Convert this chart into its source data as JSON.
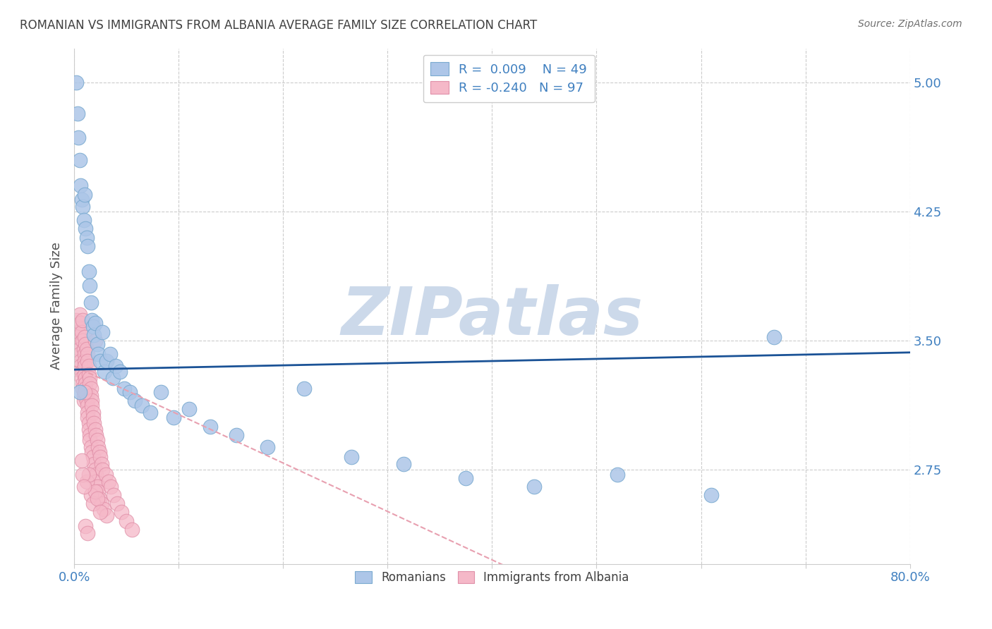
{
  "title": "ROMANIAN VS IMMIGRANTS FROM ALBANIA AVERAGE FAMILY SIZE CORRELATION CHART",
  "source": "Source: ZipAtlas.com",
  "ylabel": "Average Family Size",
  "xlim": [
    0.0,
    0.8
  ],
  "ylim": [
    2.2,
    5.2
  ],
  "yticks": [
    2.75,
    3.5,
    4.25,
    5.0
  ],
  "xticks": [
    0.0,
    0.1,
    0.2,
    0.3,
    0.4,
    0.5,
    0.6,
    0.7,
    0.8
  ],
  "xtick_labels": [
    "0.0%",
    "",
    "",
    "",
    "",
    "",
    "",
    "",
    "80.0%"
  ],
  "legend1_r": "R =  0.009",
  "legend1_n": "N = 49",
  "legend2_r": "R = -0.240",
  "legend2_n": "N = 97",
  "color_blue": "#adc6e8",
  "color_pink": "#f5b8c8",
  "trendline_blue_color": "#1a5296",
  "trendline_pink_color": "#e8a0b0",
  "watermark": "ZIPatlas",
  "watermark_color": "#ccd9ea",
  "title_color": "#404040",
  "axis_color": "#4080c0",
  "blue_x": [
    0.002,
    0.003,
    0.004,
    0.005,
    0.006,
    0.007,
    0.008,
    0.009,
    0.01,
    0.011,
    0.012,
    0.013,
    0.014,
    0.015,
    0.016,
    0.017,
    0.018,
    0.019,
    0.02,
    0.022,
    0.023,
    0.025,
    0.027,
    0.029,
    0.031,
    0.034,
    0.037,
    0.04,
    0.044,
    0.048,
    0.053,
    0.058,
    0.065,
    0.073,
    0.083,
    0.095,
    0.11,
    0.13,
    0.155,
    0.185,
    0.22,
    0.265,
    0.315,
    0.375,
    0.44,
    0.52,
    0.61,
    0.005,
    0.67
  ],
  "blue_y": [
    5.0,
    4.82,
    4.68,
    4.55,
    4.4,
    4.32,
    4.28,
    4.2,
    4.35,
    4.15,
    4.1,
    4.05,
    3.9,
    3.82,
    3.72,
    3.62,
    3.58,
    3.53,
    3.6,
    3.48,
    3.42,
    3.38,
    3.55,
    3.32,
    3.38,
    3.42,
    3.28,
    3.35,
    3.32,
    3.22,
    3.2,
    3.15,
    3.12,
    3.08,
    3.2,
    3.05,
    3.1,
    3.0,
    2.95,
    2.88,
    3.22,
    2.82,
    2.78,
    2.7,
    2.65,
    2.72,
    2.6,
    3.2,
    3.52
  ],
  "pink_x": [
    0.002,
    0.003,
    0.003,
    0.004,
    0.004,
    0.005,
    0.005,
    0.005,
    0.006,
    0.006,
    0.006,
    0.007,
    0.007,
    0.007,
    0.008,
    0.008,
    0.008,
    0.008,
    0.009,
    0.009,
    0.009,
    0.01,
    0.01,
    0.01,
    0.01,
    0.01,
    0.011,
    0.011,
    0.011,
    0.011,
    0.012,
    0.012,
    0.012,
    0.012,
    0.013,
    0.013,
    0.013,
    0.013,
    0.013,
    0.014,
    0.014,
    0.014,
    0.014,
    0.015,
    0.015,
    0.015,
    0.015,
    0.016,
    0.016,
    0.016,
    0.017,
    0.017,
    0.017,
    0.018,
    0.018,
    0.018,
    0.019,
    0.019,
    0.02,
    0.02,
    0.02,
    0.021,
    0.021,
    0.021,
    0.022,
    0.022,
    0.023,
    0.023,
    0.024,
    0.024,
    0.025,
    0.026,
    0.026,
    0.027,
    0.028,
    0.03,
    0.031,
    0.033,
    0.035,
    0.038,
    0.041,
    0.045,
    0.05,
    0.055,
    0.01,
    0.012,
    0.014,
    0.016,
    0.018,
    0.02,
    0.022,
    0.025,
    0.008,
    0.009,
    0.007,
    0.011,
    0.013
  ],
  "pink_y": [
    3.62,
    3.58,
    3.52,
    3.55,
    3.48,
    3.65,
    3.45,
    3.42,
    3.6,
    3.38,
    3.35,
    3.55,
    3.32,
    3.28,
    3.62,
    3.25,
    3.22,
    3.5,
    3.18,
    3.45,
    3.15,
    3.52,
    3.42,
    3.38,
    3.35,
    3.3,
    3.48,
    3.28,
    3.25,
    3.22,
    3.45,
    3.2,
    3.18,
    3.15,
    3.42,
    3.12,
    3.38,
    3.08,
    3.05,
    3.35,
    3.02,
    3.3,
    2.98,
    3.28,
    3.25,
    2.95,
    2.92,
    3.22,
    3.18,
    2.88,
    3.15,
    3.12,
    2.85,
    3.08,
    3.05,
    2.82,
    3.02,
    2.78,
    3.5,
    2.98,
    2.75,
    2.95,
    2.72,
    2.68,
    2.92,
    2.65,
    2.88,
    2.62,
    2.85,
    2.58,
    2.82,
    2.78,
    2.55,
    2.75,
    2.52,
    2.72,
    2.48,
    2.68,
    2.65,
    2.6,
    2.55,
    2.5,
    2.45,
    2.4,
    3.2,
    2.68,
    2.72,
    2.6,
    2.55,
    2.62,
    2.58,
    2.5,
    2.72,
    2.65,
    2.8,
    2.42,
    2.38
  ]
}
